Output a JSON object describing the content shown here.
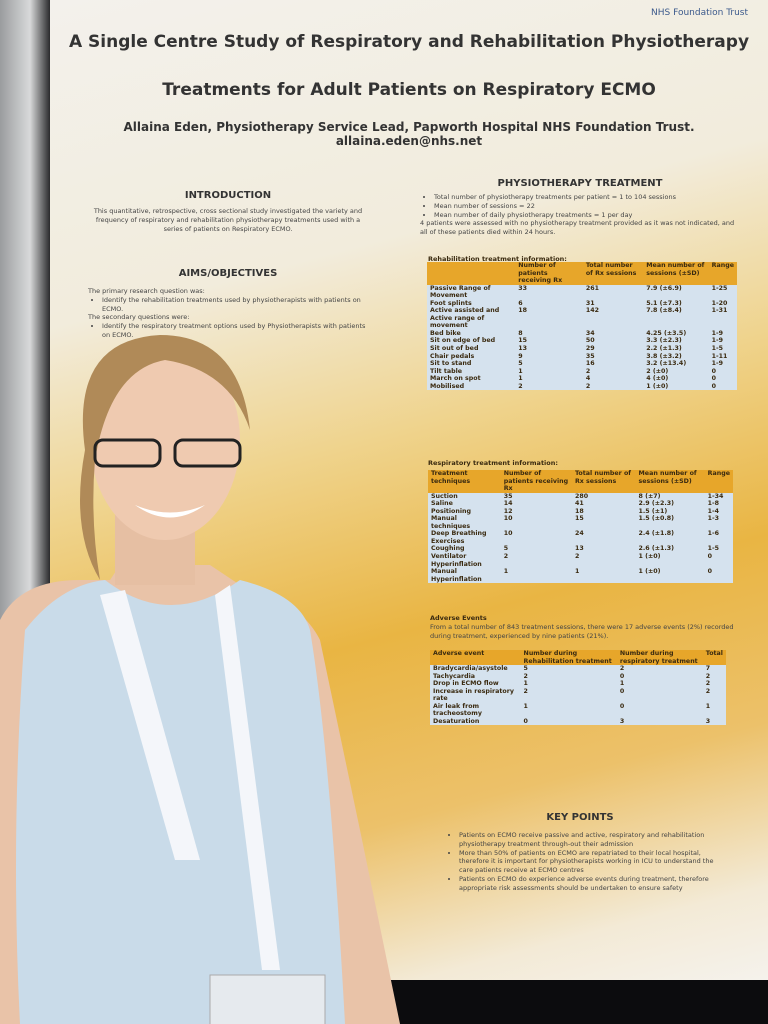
{
  "header": {
    "org": "NHS Foundation Trust",
    "title_lines": [
      "A Single Centre Study of Respiratory and Rehabilitation Physiotherapy",
      "Treatments for Adult Patients on Respiratory ECMO"
    ],
    "author": "Allaina Eden, Physiotherapy Service Lead, Papworth Hospital NHS Foundation Trust. allaina.eden@nhs.net"
  },
  "introduction": {
    "heading": "INTRODUCTION",
    "text": "This quantitative, retrospective, cross sectional study investigated the variety and frequency of respiratory and rehabilitation physiotherapy treatments used with a series of patients on Respiratory ECMO."
  },
  "aims": {
    "heading": "AIMS/OBJECTIVES",
    "primary": "The primary research question was:",
    "primary_items": [
      "Identify the rehabilitation treatments used by physiotherapists with patients on ECMO."
    ],
    "secondary": "The secondary questions were:",
    "secondary_items": [
      "Identify the respiratory treatment options used by Physiotherapists with patients on ECMO."
    ]
  },
  "physiotherapy": {
    "heading": "PHYSIOTHERAPY TREATMENT",
    "items": [
      "Total number of physiotherapy treatments per patient = 1 to 104 sessions",
      "Mean number of sessions = 22",
      "Mean number of daily physiotherapy treatments = 1 per day"
    ],
    "note": "4 patients were assessed with no physiotherapy treatment provided as it was not indicated, and all of these patients died within 24 hours."
  },
  "tables": {
    "rehab": {
      "caption": "Rehabilitation treatment information:",
      "headers": [
        "",
        "Number of patients receiving Rx",
        "Total number of Rx sessions",
        "Mean number of sessions (±SD)",
        "Range"
      ],
      "rows": [
        [
          "Passive Range of Movement",
          "33",
          "261",
          "7.9 (±6.9)",
          "1-25"
        ],
        [
          "Foot splints",
          "6",
          "31",
          "5.1 (±7.3)",
          "1-20"
        ],
        [
          "Active assisted and Active range of movement",
          "18",
          "142",
          "7.8 (±8.4)",
          "1-31"
        ],
        [
          "Bed bike",
          "8",
          "34",
          "4.25 (±3.5)",
          "1-9"
        ],
        [
          "Sit on edge of bed",
          "15",
          "50",
          "3.3 (±2.3)",
          "1-9"
        ],
        [
          "Sit out of bed",
          "13",
          "29",
          "2.2 (±1.3)",
          "1-5"
        ],
        [
          "Chair pedals",
          "9",
          "35",
          "3.8 (±3.2)",
          "1-11"
        ],
        [
          "Sit to stand",
          "5",
          "16",
          "3.2 (±13.4)",
          "1-9"
        ],
        [
          "Tilt table",
          "1",
          "2",
          "2 (±0)",
          "0"
        ],
        [
          "March on spot",
          "1",
          "4",
          "4 (±0)",
          "0"
        ],
        [
          "Mobilised",
          "2",
          "2",
          "1 (±0)",
          "0"
        ]
      ]
    },
    "resp": {
      "caption": "Respiratory treatment information:",
      "headers": [
        "Treatment techniques",
        "Number of patients receiving Rx",
        "Total number of Rx sessions",
        "Mean number of sessions (±SD)",
        "Range"
      ],
      "rows": [
        [
          "Suction",
          "35",
          "280",
          "8 (±7)",
          "1-34"
        ],
        [
          "Saline",
          "14",
          "41",
          "2.9 (±2.3)",
          "1-8"
        ],
        [
          "Positioning",
          "12",
          "18",
          "1.5 (±1)",
          "1-4"
        ],
        [
          "Manual techniques",
          "10",
          "15",
          "1.5 (±0.8)",
          "1-3"
        ],
        [
          "Deep Breathing Exercises",
          "10",
          "24",
          "2.4 (±1.8)",
          "1-6"
        ],
        [
          "Coughing",
          "5",
          "13",
          "2.6 (±1.3)",
          "1-5"
        ],
        [
          "Ventilator Hyperinflation",
          "2",
          "2",
          "1 (±0)",
          "0"
        ],
        [
          "Manual Hyperinflation",
          "1",
          "1",
          "1 (±0)",
          "0"
        ]
      ]
    },
    "adverse": {
      "caption": "Adverse Events",
      "intro": "From a total number of 843 treatment sessions, there were 17 adverse events (2%) recorded during treatment, experienced by nine patients (21%).",
      "headers": [
        "Adverse event",
        "Number during Rehabilitation treatment",
        "Number during respiratory treatment",
        "Total"
      ],
      "rows": [
        [
          "Bradycardia/asystole",
          "5",
          "2",
          "7"
        ],
        [
          "Tachycardia",
          "2",
          "0",
          "2"
        ],
        [
          "Drop in ECMO flow",
          "1",
          "1",
          "2"
        ],
        [
          "Increase in respiratory rate",
          "2",
          "0",
          "2"
        ],
        [
          "Air leak from tracheostomy",
          "1",
          "0",
          "1"
        ],
        [
          "Desaturation",
          "0",
          "3",
          "3"
        ]
      ]
    }
  },
  "key_points": {
    "heading": "KEY POINTS",
    "items": [
      "Patients on ECMO receive passive and active, respiratory and rehabilitation physiotherapy treatment through-out their admission",
      "More than 50% of patients on ECMO are repatriated to their local hospital, therefore it is important for physiotherapists working in ICU to understand the care patients receive at ECMO centres",
      "Patients on ECMO do experience adverse events during treatment, therefore appropriate risk assessments should be undertaken to ensure safety"
    ]
  }
}
